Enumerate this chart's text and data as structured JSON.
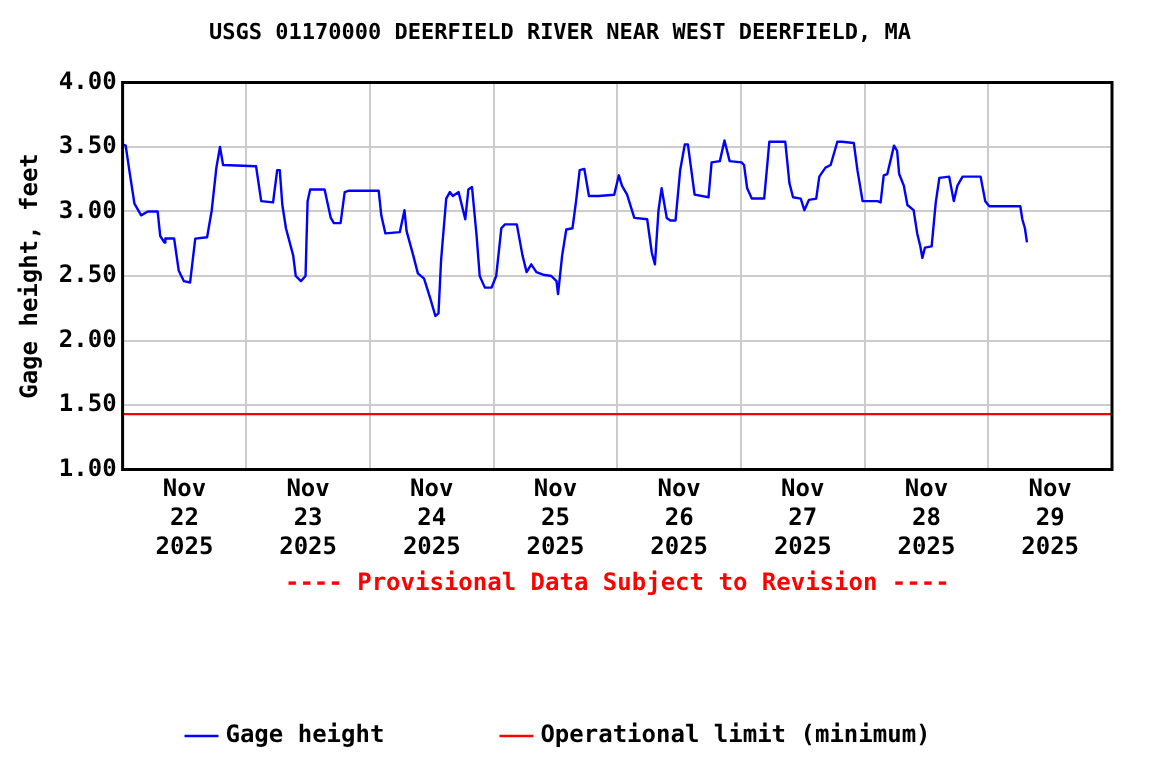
{
  "chart_data": {
    "type": "line",
    "title": "USGS 01170000 DEERFIELD RIVER NEAR WEST DEERFIELD, MA",
    "ylabel": "Gage height, feet",
    "annotations": [
      "---- Provisional Data Subject to Revision ----"
    ],
    "xlim": [
      "2025-11-22T00:00",
      "2025-11-30T00:00"
    ],
    "xticks": [
      {
        "value": "2025-11-22T12:00",
        "label": "Nov\n22\n2025"
      },
      {
        "value": "2025-11-23T00:00",
        "label": null
      },
      {
        "value": "2025-11-23T12:00",
        "label": "Nov\n23\n2025"
      },
      {
        "value": "2025-11-24T00:00",
        "label": null
      },
      {
        "value": "2025-11-24T12:00",
        "label": "Nov\n24\n2025"
      },
      {
        "value": "2025-11-25T00:00",
        "label": null
      },
      {
        "value": "2025-11-25T12:00",
        "label": "Nov\n25\n2025"
      },
      {
        "value": "2025-11-26T00:00",
        "label": null
      },
      {
        "value": "2025-11-26T12:00",
        "label": "Nov\n26\n2025"
      },
      {
        "value": "2025-11-27T00:00",
        "label": null
      },
      {
        "value": "2025-11-27T12:00",
        "label": "Nov\n27\n2025"
      },
      {
        "value": "2025-11-28T00:00",
        "label": null
      },
      {
        "value": "2025-11-28T12:00",
        "label": "Nov\n28\n2025"
      },
      {
        "value": "2025-11-29T00:00",
        "label": null
      },
      {
        "value": "2025-11-29T12:00",
        "label": "Nov\n29\n2025"
      }
    ],
    "ylim": [
      1,
      4
    ],
    "yticks": [
      {
        "value": 1,
        "label": "1.00"
      },
      {
        "value": 1.5,
        "label": "1.50"
      },
      {
        "value": 2,
        "label": "2.00"
      },
      {
        "value": 2.5,
        "label": "2.50"
      },
      {
        "value": 3,
        "label": "3.00"
      },
      {
        "value": 3.5,
        "label": "3.50"
      },
      {
        "value": 4,
        "label": "4.00"
      }
    ],
    "grid": true,
    "legend": "bottom",
    "marker": "none",
    "line_style": "solid",
    "series": [
      {
        "name": "Gage height",
        "color": "#0000ff",
        "x": [
          "2025-11-22T00:00",
          "2025-11-22T00:36",
          "2025-11-22T01:18",
          "2025-11-22T02:18",
          "2025-11-22T03:36",
          "2025-11-22T04:54",
          "2025-11-22T06:48",
          "2025-11-22T07:18",
          "2025-11-22T08:06",
          "2025-11-22T08:18",
          "2025-11-22T10:00",
          "2025-11-22T10:54",
          "2025-11-22T11:54",
          "2025-11-22T13:06",
          "2025-11-22T14:06",
          "2025-11-22T16:24",
          "2025-11-22T17:18",
          "2025-11-22T18:12",
          "2025-11-22T18:54",
          "2025-11-22T19:30",
          "2025-11-23T01:54",
          "2025-11-23T02:54",
          "2025-11-23T05:12",
          "2025-11-23T06:00",
          "2025-11-23T06:30",
          "2025-11-23T07:00",
          "2025-11-23T07:42",
          "2025-11-23T09:06",
          "2025-11-23T09:36",
          "2025-11-23T10:36",
          "2025-11-23T11:30",
          "2025-11-23T11:54",
          "2025-11-23T12:24",
          "2025-11-23T15:12",
          "2025-11-23T16:24",
          "2025-11-23T17:00",
          "2025-11-23T18:18",
          "2025-11-23T19:06",
          "2025-11-23T19:48",
          "2025-11-24T01:42",
          "2025-11-24T02:12",
          "2025-11-24T03:00",
          "2025-11-24T05:48",
          "2025-11-24T06:42",
          "2025-11-24T07:06",
          "2025-11-24T08:24",
          "2025-11-24T09:18",
          "2025-11-24T10:30",
          "2025-11-24T11:36",
          "2025-11-24T12:42",
          "2025-11-24T13:18",
          "2025-11-24T13:48",
          "2025-11-24T14:48",
          "2025-11-24T15:30",
          "2025-11-24T16:06",
          "2025-11-24T17:12",
          "2025-11-24T18:30",
          "2025-11-24T19:06",
          "2025-11-24T19:48",
          "2025-11-24T20:42",
          "2025-11-24T21:18",
          "2025-11-24T22:18",
          "2025-11-24T23:36",
          "2025-11-25T00:30",
          "2025-11-25T01:30",
          "2025-11-25T02:12",
          "2025-11-25T04:30",
          "2025-11-25T05:36",
          "2025-11-25T06:24",
          "2025-11-25T07:18",
          "2025-11-25T08:18",
          "2025-11-25T09:36",
          "2025-11-25T11:12",
          "2025-11-25T12:12",
          "2025-11-25T12:30",
          "2025-11-25T13:18",
          "2025-11-25T14:06",
          "2025-11-25T15:18",
          "2025-11-25T16:00",
          "2025-11-25T16:42",
          "2025-11-25T17:36",
          "2025-11-25T18:30",
          "2025-11-25T20:24",
          "2025-11-25T23:24",
          "2025-11-26T00:18",
          "2025-11-26T00:54",
          "2025-11-26T01:54",
          "2025-11-26T03:18",
          "2025-11-26T05:48",
          "2025-11-26T06:42",
          "2025-11-26T07:18",
          "2025-11-26T08:00",
          "2025-11-26T08:36",
          "2025-11-26T09:36",
          "2025-11-26T10:18",
          "2025-11-26T11:18",
          "2025-11-26T12:12",
          "2025-11-26T13:06",
          "2025-11-26T13:42",
          "2025-11-26T15:00",
          "2025-11-26T17:42",
          "2025-11-26T18:18",
          "2025-11-26T19:54",
          "2025-11-26T20:48",
          "2025-11-26T21:48",
          "2025-11-27T00:06",
          "2025-11-27T00:36",
          "2025-11-27T01:12",
          "2025-11-27T02:06",
          "2025-11-27T04:30",
          "2025-11-27T05:06",
          "2025-11-27T05:30",
          "2025-11-27T08:36",
          "2025-11-27T09:24",
          "2025-11-27T10:06",
          "2025-11-27T11:36",
          "2025-11-27T12:18",
          "2025-11-27T13:12",
          "2025-11-27T14:36",
          "2025-11-27T15:12",
          "2025-11-27T16:24",
          "2025-11-27T17:24",
          "2025-11-27T18:42",
          "2025-11-27T19:36",
          "2025-11-27T21:54",
          "2025-11-27T22:36",
          "2025-11-27T23:36",
          "2025-11-28T02:30",
          "2025-11-28T03:06",
          "2025-11-28T03:42",
          "2025-11-28T04:24",
          "2025-11-28T05:42",
          "2025-11-28T06:18",
          "2025-11-28T06:42",
          "2025-11-28T07:36",
          "2025-11-28T08:18",
          "2025-11-28T09:30",
          "2025-11-28T10:12",
          "2025-11-28T10:48",
          "2025-11-28T11:12",
          "2025-11-28T11:42",
          "2025-11-28T13:00",
          "2025-11-28T13:48",
          "2025-11-28T14:30",
          "2025-11-28T16:24",
          "2025-11-28T17:18",
          "2025-11-28T18:00",
          "2025-11-28T19:00",
          "2025-11-28T22:30",
          "2025-11-28T23:24",
          "2025-11-29T00:12",
          "2025-11-29T06:12",
          "2025-11-29T06:36",
          "2025-11-29T07:06",
          "2025-11-29T07:30"
        ],
        "values": [
          3.52,
          3.51,
          3.32,
          3.06,
          2.97,
          3.0,
          3.0,
          2.81,
          2.76,
          2.79,
          2.79,
          2.54,
          2.46,
          2.45,
          2.79,
          2.8,
          3.01,
          3.34,
          3.5,
          3.36,
          3.35,
          3.08,
          3.07,
          3.32,
          3.32,
          3.05,
          2.87,
          2.66,
          2.5,
          2.46,
          2.5,
          3.08,
          3.17,
          3.17,
          2.95,
          2.91,
          2.91,
          3.15,
          3.16,
          3.16,
          2.97,
          2.83,
          2.84,
          3.01,
          2.85,
          2.66,
          2.52,
          2.48,
          2.34,
          2.19,
          2.21,
          2.62,
          3.1,
          3.15,
          3.12,
          3.15,
          2.94,
          3.17,
          3.19,
          2.81,
          2.5,
          2.41,
          2.41,
          2.5,
          2.87,
          2.9,
          2.9,
          2.66,
          2.53,
          2.59,
          2.53,
          2.51,
          2.5,
          2.46,
          2.36,
          2.66,
          2.86,
          2.87,
          3.08,
          3.32,
          3.33,
          3.12,
          3.12,
          3.13,
          3.28,
          3.2,
          3.13,
          2.95,
          2.94,
          2.68,
          2.59,
          3.01,
          3.18,
          2.95,
          2.93,
          2.93,
          3.32,
          3.52,
          3.52,
          3.13,
          3.11,
          3.38,
          3.39,
          3.55,
          3.39,
          3.38,
          3.36,
          3.18,
          3.1,
          3.1,
          3.36,
          3.54,
          3.54,
          3.22,
          3.11,
          3.1,
          3.01,
          3.09,
          3.1,
          3.27,
          3.34,
          3.36,
          3.54,
          3.54,
          3.53,
          3.32,
          3.08,
          3.08,
          3.07,
          3.28,
          3.29,
          3.51,
          3.47,
          3.29,
          3.2,
          3.05,
          3.01,
          2.83,
          2.73,
          2.64,
          2.72,
          2.73,
          3.07,
          3.26,
          3.27,
          3.08,
          3.2,
          3.27,
          3.27,
          3.08,
          3.04,
          3.04,
          2.94,
          2.87,
          2.76
        ]
      },
      {
        "name": "Operational limit (minimum)",
        "color": "#ff0000",
        "x": [
          "2025-11-22T00:00",
          "2025-11-30T00:00"
        ],
        "values": [
          1.43,
          1.43
        ]
      }
    ]
  }
}
